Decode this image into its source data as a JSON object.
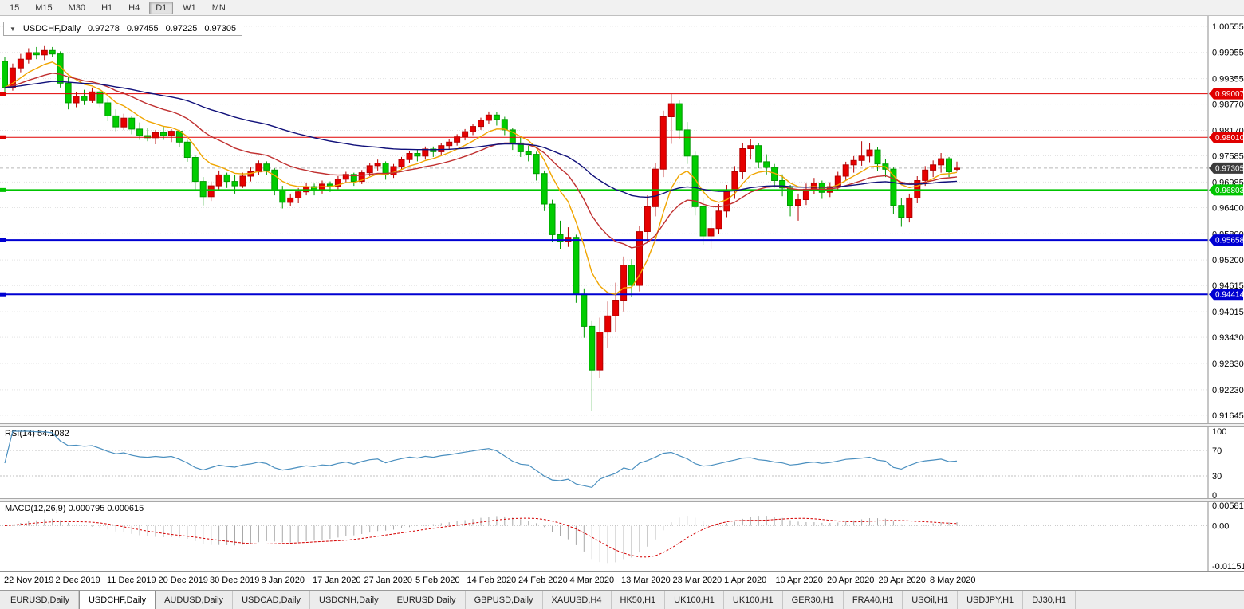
{
  "toolbar": {
    "timeframes": [
      {
        "label": "15",
        "active": false
      },
      {
        "label": "M15",
        "active": false
      },
      {
        "label": "M30",
        "active": false
      },
      {
        "label": "H1",
        "active": false
      },
      {
        "label": "H4",
        "active": false
      },
      {
        "label": "D1",
        "active": true
      },
      {
        "label": "W1",
        "active": false
      },
      {
        "label": "MN",
        "active": false
      }
    ]
  },
  "chart_data": {
    "type": "candlestick",
    "symbol_label": "USDCHF,Daily",
    "ohlc": {
      "open": "0.97278",
      "high": "0.97455",
      "low": "0.97225",
      "close": "0.97305"
    },
    "price_scale": {
      "top": 1.0079,
      "bottom": 0.9146
    },
    "price_axis_labels": [
      "1.00555",
      "0.99955",
      "0.99355",
      "0.98770",
      "0.98170",
      "0.97585",
      "0.96985",
      "0.96400",
      "0.95800",
      "0.95200",
      "0.94615",
      "0.94015",
      "0.93430",
      "0.92830",
      "0.92230",
      "0.91645"
    ],
    "x_axis_labels": [
      "22 Nov 2019",
      "2 Dec 2019",
      "11 Dec 2019",
      "20 Dec 2019",
      "30 Dec 2019",
      "8 Jan 2020",
      "17 Jan 2020",
      "27 Jan 2020",
      "5 Feb 2020",
      "14 Feb 2020",
      "24 Feb 2020",
      "4 Mar 2020",
      "13 Mar 2020",
      "23 Mar 2020",
      "1 Apr 2020",
      "10 Apr 2020",
      "20 Apr 2020",
      "29 Apr 2020",
      "8 May 2020"
    ],
    "hlines": [
      {
        "price": 0.99007,
        "label": "0.99007",
        "color": "#e00000",
        "width": 1
      },
      {
        "price": 0.9801,
        "label": "0.98010",
        "color": "#e00000",
        "width": 1
      },
      {
        "price": 0.96803,
        "label": "0.96803",
        "color": "#00c400",
        "width": 2
      },
      {
        "price": 0.95658,
        "label": "0.95658",
        "color": "#0000d2",
        "width": 2
      },
      {
        "price": 0.94414,
        "label": "0.94414",
        "color": "#0000d2",
        "width": 2
      }
    ],
    "current_price": {
      "value": 0.97305,
      "label": "0.97305",
      "color": "#3c3c3c"
    },
    "colors": {
      "bull": "#e60000",
      "bull_border": "#b40000",
      "bear": "#00cd00",
      "bear_border": "#009a00"
    },
    "moving_averages": [
      {
        "period": 8,
        "color": "#f0a500"
      },
      {
        "period": 20,
        "color": "#c03030"
      },
      {
        "period": 55,
        "color": "#10107a"
      }
    ],
    "candles": [
      [
        0.9975,
        0.9985,
        0.9905,
        0.9915
      ],
      [
        0.9915,
        0.997,
        0.9908,
        0.996
      ],
      [
        0.996,
        0.9992,
        0.995,
        0.998
      ],
      [
        0.998,
        1.0005,
        0.997,
        0.9995
      ],
      [
        0.9995,
        1.0008,
        0.998,
        0.999
      ],
      [
        0.999,
        1.001,
        0.9978,
        1.0
      ],
      [
        1.0,
        1.0008,
        0.9985,
        0.9992
      ],
      [
        0.9992,
        0.9998,
        0.9915,
        0.9925
      ],
      [
        0.9925,
        0.994,
        0.9865,
        0.988
      ],
      [
        0.988,
        0.9905,
        0.987,
        0.9895
      ],
      [
        0.9895,
        0.991,
        0.9875,
        0.9885
      ],
      [
        0.9885,
        0.9915,
        0.988,
        0.9905
      ],
      [
        0.9905,
        0.9912,
        0.987,
        0.988
      ],
      [
        0.988,
        0.989,
        0.9838,
        0.985
      ],
      [
        0.985,
        0.9865,
        0.9815,
        0.9825
      ],
      [
        0.9825,
        0.9855,
        0.9818,
        0.9845
      ],
      [
        0.9845,
        0.985,
        0.9808,
        0.982
      ],
      [
        0.982,
        0.9835,
        0.9795,
        0.9805
      ],
      [
        0.9805,
        0.9822,
        0.9792,
        0.98
      ],
      [
        0.98,
        0.9818,
        0.9785,
        0.9812
      ],
      [
        0.9812,
        0.9825,
        0.9795,
        0.9805
      ],
      [
        0.9805,
        0.982,
        0.979,
        0.9815
      ],
      [
        0.9815,
        0.9818,
        0.9778,
        0.979
      ],
      [
        0.979,
        0.9795,
        0.9745,
        0.9755
      ],
      [
        0.9755,
        0.976,
        0.9678,
        0.97
      ],
      [
        0.97,
        0.971,
        0.9645,
        0.9665
      ],
      [
        0.9665,
        0.97,
        0.9655,
        0.969
      ],
      [
        0.969,
        0.9725,
        0.968,
        0.9715
      ],
      [
        0.9715,
        0.972,
        0.9685,
        0.97
      ],
      [
        0.97,
        0.9715,
        0.9672,
        0.969
      ],
      [
        0.969,
        0.972,
        0.9685,
        0.9712
      ],
      [
        0.9712,
        0.9732,
        0.97,
        0.9722
      ],
      [
        0.9722,
        0.9748,
        0.9715,
        0.974
      ],
      [
        0.974,
        0.9746,
        0.9714,
        0.9726
      ],
      [
        0.9726,
        0.973,
        0.9668,
        0.968
      ],
      [
        0.968,
        0.969,
        0.9638,
        0.9652
      ],
      [
        0.9652,
        0.9672,
        0.9644,
        0.9662
      ],
      [
        0.9662,
        0.9685,
        0.965,
        0.9676
      ],
      [
        0.9676,
        0.9696,
        0.9668,
        0.9688
      ],
      [
        0.9688,
        0.9695,
        0.9668,
        0.968
      ],
      [
        0.968,
        0.9702,
        0.9672,
        0.9694
      ],
      [
        0.9694,
        0.97,
        0.9676,
        0.9688
      ],
      [
        0.9688,
        0.9712,
        0.9682,
        0.9705
      ],
      [
        0.9705,
        0.9722,
        0.9698,
        0.9716
      ],
      [
        0.9716,
        0.972,
        0.969,
        0.97
      ],
      [
        0.97,
        0.9726,
        0.9694,
        0.972
      ],
      [
        0.972,
        0.9742,
        0.9712,
        0.9736
      ],
      [
        0.9736,
        0.975,
        0.9725,
        0.9742
      ],
      [
        0.9742,
        0.9746,
        0.9704,
        0.9715
      ],
      [
        0.9715,
        0.974,
        0.9708,
        0.9734
      ],
      [
        0.9734,
        0.9756,
        0.9726,
        0.975
      ],
      [
        0.975,
        0.977,
        0.9742,
        0.9764
      ],
      [
        0.9764,
        0.9772,
        0.9746,
        0.9758
      ],
      [
        0.9758,
        0.978,
        0.975,
        0.9774
      ],
      [
        0.9774,
        0.978,
        0.9756,
        0.9768
      ],
      [
        0.9768,
        0.9788,
        0.976,
        0.9782
      ],
      [
        0.9782,
        0.9796,
        0.9774,
        0.979
      ],
      [
        0.979,
        0.9808,
        0.9782,
        0.9802
      ],
      [
        0.9802,
        0.982,
        0.9794,
        0.9814
      ],
      [
        0.9814,
        0.9832,
        0.9806,
        0.9826
      ],
      [
        0.9826,
        0.9846,
        0.9818,
        0.984
      ],
      [
        0.984,
        0.986,
        0.9832,
        0.9852
      ],
      [
        0.9852,
        0.9858,
        0.9828,
        0.9842
      ],
      [
        0.9842,
        0.9848,
        0.9806,
        0.9818
      ],
      [
        0.9818,
        0.9822,
        0.9772,
        0.9788
      ],
      [
        0.9788,
        0.98,
        0.9756,
        0.9768
      ],
      [
        0.9768,
        0.9782,
        0.9746,
        0.9762
      ],
      [
        0.9762,
        0.9768,
        0.9702,
        0.9718
      ],
      [
        0.9718,
        0.9725,
        0.9632,
        0.9648
      ],
      [
        0.9648,
        0.9658,
        0.9562,
        0.9578
      ],
      [
        0.9578,
        0.961,
        0.9545,
        0.9562
      ],
      [
        0.9562,
        0.9595,
        0.955,
        0.9572
      ],
      [
        0.9572,
        0.9578,
        0.9422,
        0.9442
      ],
      [
        0.9442,
        0.9455,
        0.9342,
        0.9368
      ],
      [
        0.9368,
        0.938,
        0.9175,
        0.9268
      ],
      [
        0.9268,
        0.9388,
        0.925,
        0.9355
      ],
      [
        0.9355,
        0.9425,
        0.9318,
        0.9392
      ],
      [
        0.9392,
        0.9468,
        0.9355,
        0.9428
      ],
      [
        0.9428,
        0.9528,
        0.9402,
        0.9508
      ],
      [
        0.9508,
        0.9522,
        0.9435,
        0.9462
      ],
      [
        0.9462,
        0.9598,
        0.9448,
        0.9585
      ],
      [
        0.9585,
        0.9668,
        0.956,
        0.9642
      ],
      [
        0.9642,
        0.9742,
        0.962,
        0.9728
      ],
      [
        0.9728,
        0.9862,
        0.971,
        0.9848
      ],
      [
        0.9848,
        0.9901,
        0.9786,
        0.9878
      ],
      [
        0.9878,
        0.9886,
        0.9796,
        0.9818
      ],
      [
        0.9818,
        0.9836,
        0.974,
        0.9758
      ],
      [
        0.9758,
        0.9768,
        0.9622,
        0.9642
      ],
      [
        0.9642,
        0.9662,
        0.9555,
        0.9575
      ],
      [
        0.9575,
        0.9618,
        0.9546,
        0.9592
      ],
      [
        0.9592,
        0.9648,
        0.958,
        0.9632
      ],
      [
        0.9632,
        0.9692,
        0.9618,
        0.9678
      ],
      [
        0.9678,
        0.9735,
        0.966,
        0.9722
      ],
      [
        0.9722,
        0.9788,
        0.9706,
        0.9775
      ],
      [
        0.9775,
        0.9796,
        0.975,
        0.9782
      ],
      [
        0.9782,
        0.9788,
        0.973,
        0.9745
      ],
      [
        0.9745,
        0.9762,
        0.9716,
        0.9732
      ],
      [
        0.9732,
        0.974,
        0.9686,
        0.9702
      ],
      [
        0.9702,
        0.9716,
        0.9666,
        0.9685
      ],
      [
        0.9685,
        0.9692,
        0.962,
        0.9645
      ],
      [
        0.9645,
        0.9672,
        0.961,
        0.9658
      ],
      [
        0.9658,
        0.9695,
        0.9646,
        0.9682
      ],
      [
        0.9682,
        0.9708,
        0.967,
        0.9696
      ],
      [
        0.9696,
        0.9702,
        0.966,
        0.9675
      ],
      [
        0.9675,
        0.9698,
        0.9664,
        0.9688
      ],
      [
        0.9688,
        0.9722,
        0.968,
        0.9712
      ],
      [
        0.9712,
        0.9745,
        0.9702,
        0.9738
      ],
      [
        0.9738,
        0.9758,
        0.972,
        0.9748
      ],
      [
        0.9748,
        0.9792,
        0.9736,
        0.9758
      ],
      [
        0.9758,
        0.9788,
        0.9744,
        0.9772
      ],
      [
        0.9772,
        0.9778,
        0.9724,
        0.974
      ],
      [
        0.974,
        0.9752,
        0.971,
        0.9728
      ],
      [
        0.9728,
        0.9732,
        0.9625,
        0.9645
      ],
      [
        0.9645,
        0.9662,
        0.9596,
        0.9618
      ],
      [
        0.9618,
        0.9672,
        0.9606,
        0.9662
      ],
      [
        0.9662,
        0.9712,
        0.965,
        0.9702
      ],
      [
        0.9702,
        0.9735,
        0.969,
        0.9726
      ],
      [
        0.9726,
        0.9748,
        0.971,
        0.9738
      ],
      [
        0.9738,
        0.9765,
        0.972,
        0.9752
      ],
      [
        0.9752,
        0.9756,
        0.971,
        0.9722
      ],
      [
        0.97278,
        0.97455,
        0.97225,
        0.97305
      ]
    ],
    "rsi": {
      "label": "RSI(14) 54.1082",
      "period": 14,
      "color": "#4a8fbf",
      "levels": [
        {
          "label": "100",
          "line": false
        },
        {
          "label": "70",
          "line": true
        },
        {
          "label": "30",
          "line": true
        },
        {
          "label": "0",
          "line": false
        }
      ]
    },
    "macd": {
      "label": "MACD(12,26,9) 0.000795 0.000615",
      "fast": 12,
      "slow": 26,
      "signal": 9,
      "histogram_color": "#a8a8a8",
      "signal_color": "#d40000",
      "axis": [
        {
          "label": "0.005818",
          "value": 0.005818
        },
        {
          "label": "0.00",
          "value": 0
        },
        {
          "label": "-0.011518",
          "value": -0.011518
        }
      ]
    }
  },
  "tabs": [
    {
      "label": "EURUSD,Daily",
      "active": false
    },
    {
      "label": "USDCHF,Daily",
      "active": true
    },
    {
      "label": "AUDUSD,Daily",
      "active": false
    },
    {
      "label": "USDCAD,Daily",
      "active": false
    },
    {
      "label": "USDCNH,Daily",
      "active": false
    },
    {
      "label": "EURUSD,Daily",
      "active": false
    },
    {
      "label": "GBPUSD,Daily",
      "active": false
    },
    {
      "label": "XAUUSD,H4",
      "active": false
    },
    {
      "label": "HK50,H1",
      "active": false
    },
    {
      "label": "UK100,H1",
      "active": false
    },
    {
      "label": "UK100,H1",
      "active": false
    },
    {
      "label": "GER30,H1",
      "active": false
    },
    {
      "label": "FRA40,H1",
      "active": false
    },
    {
      "label": "USOil,H1",
      "active": false
    },
    {
      "label": "USDJPY,H1",
      "active": false
    },
    {
      "label": "DJ30,H1",
      "active": false
    }
  ]
}
